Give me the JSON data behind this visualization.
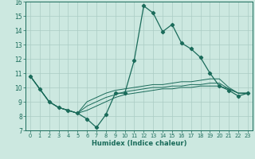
{
  "xlabel": "Humidex (Indice chaleur)",
  "background_color": "#cce8e0",
  "grid_color": "#aaccc4",
  "line_color": "#1a6b5a",
  "xlim": [
    -0.5,
    23.5
  ],
  "ylim": [
    7,
    16
  ],
  "xticks": [
    0,
    1,
    2,
    3,
    4,
    5,
    6,
    7,
    8,
    9,
    10,
    11,
    12,
    13,
    14,
    15,
    16,
    17,
    18,
    19,
    20,
    21,
    22,
    23
  ],
  "yticks": [
    7,
    8,
    9,
    10,
    11,
    12,
    13,
    14,
    15,
    16
  ],
  "series_main": [
    10.8,
    9.9,
    9.0,
    8.6,
    8.4,
    8.2,
    7.8,
    7.2,
    8.1,
    9.6,
    9.6,
    11.9,
    15.7,
    15.2,
    13.9,
    14.4,
    13.1,
    12.7,
    12.1,
    11.0,
    10.1,
    9.8,
    9.4,
    9.6
  ],
  "series_lines": [
    [
      10.8,
      9.9,
      9.0,
      8.6,
      8.4,
      8.2,
      8.4,
      8.7,
      9.0,
      9.3,
      9.5,
      9.6,
      9.7,
      9.8,
      9.9,
      9.9,
      10.0,
      10.0,
      10.1,
      10.1,
      10.1,
      9.9,
      9.6,
      9.6
    ],
    [
      10.8,
      9.9,
      9.0,
      8.6,
      8.4,
      8.2,
      8.7,
      9.0,
      9.3,
      9.5,
      9.7,
      9.8,
      9.9,
      10.0,
      10.0,
      10.1,
      10.1,
      10.2,
      10.2,
      10.3,
      10.3,
      9.9,
      9.6,
      9.6
    ],
    [
      10.8,
      9.9,
      9.0,
      8.6,
      8.4,
      8.2,
      9.0,
      9.3,
      9.6,
      9.8,
      9.9,
      10.0,
      10.1,
      10.2,
      10.2,
      10.3,
      10.4,
      10.4,
      10.5,
      10.6,
      10.6,
      10.0,
      9.6,
      9.6
    ]
  ]
}
